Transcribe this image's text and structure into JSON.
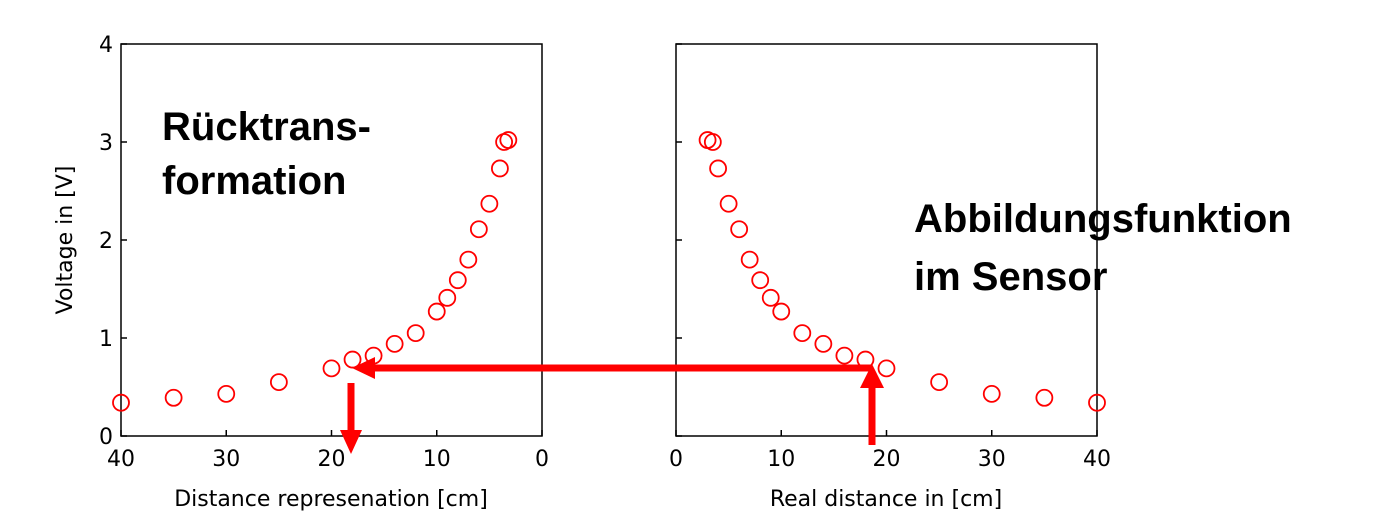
{
  "chart_data": [
    {
      "type": "scatter",
      "title": "",
      "xlabel": "Distance represenation [cm]",
      "ylabel": "Voltage in [V]",
      "xlim": [
        40,
        0
      ],
      "ylim": [
        0,
        4
      ],
      "x_reversed": true,
      "xticks": [
        40,
        30,
        20,
        10,
        0
      ],
      "yticks": [
        0,
        1,
        2,
        3,
        4
      ],
      "grid": false,
      "marker": "open-circle",
      "color": "#ff0000",
      "series": [
        {
          "x": [
            40,
            35,
            30,
            25,
            20,
            18,
            16,
            14,
            12,
            10,
            9,
            8,
            7,
            6,
            5,
            4,
            3.6,
            3.2
          ],
          "y": [
            0.34,
            0.39,
            0.43,
            0.55,
            0.69,
            0.78,
            0.82,
            0.94,
            1.05,
            1.27,
            1.41,
            1.59,
            1.8,
            2.11,
            2.37,
            2.73,
            3.0,
            3.02
          ]
        }
      ],
      "annotation": [
        "Rücktrans-",
        "formation"
      ]
    },
    {
      "type": "scatter",
      "title": "",
      "xlabel": "Real distance in [cm]",
      "ylabel": "",
      "xlim": [
        0,
        40
      ],
      "ylim": [
        0,
        4
      ],
      "xticks": [
        0,
        10,
        20,
        30,
        40
      ],
      "grid": false,
      "marker": "open-circle",
      "color": "#ff0000",
      "series": [
        {
          "x": [
            3,
            3.5,
            4,
            5,
            6,
            7,
            8,
            9,
            10,
            12,
            14,
            16,
            18,
            20,
            25,
            30,
            35,
            40
          ],
          "y": [
            3.02,
            3.0,
            2.73,
            2.37,
            2.11,
            1.8,
            1.59,
            1.41,
            1.27,
            1.05,
            0.94,
            0.82,
            0.78,
            0.69,
            0.55,
            0.43,
            0.39,
            0.34
          ]
        }
      ],
      "annotation": [
        "Abbildungsfunktion",
        "im Sensor"
      ]
    }
  ],
  "arrow_color": "#ff0000"
}
